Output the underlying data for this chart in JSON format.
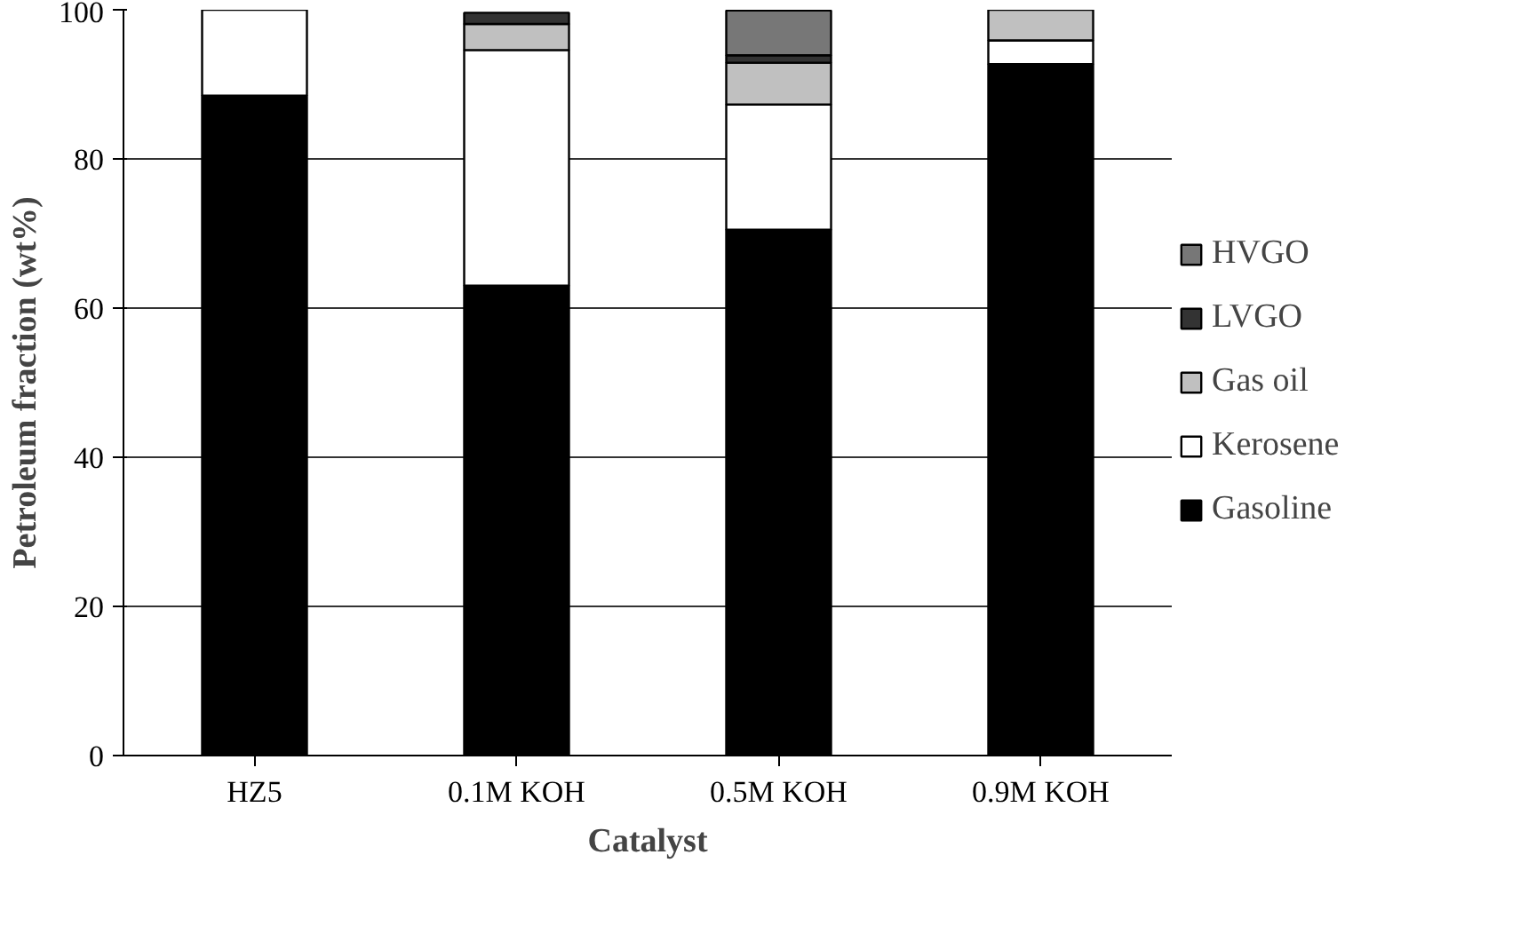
{
  "chart_data": {
    "type": "bar",
    "stacked": true,
    "xlabel": "Catalyst",
    "ylabel": "Petroleum fraction (wt%)",
    "categories": [
      "HZ5",
      "0.1M KOH",
      "0.5M KOH",
      "0.9M KOH"
    ],
    "series": [
      {
        "name": "Gasoline",
        "color": "#000000",
        "values": [
          88.5,
          63,
          70.5,
          92.7
        ]
      },
      {
        "name": "Kerosene",
        "color": "#ffffff",
        "values": [
          11.5,
          31.6,
          16.8,
          3.2
        ]
      },
      {
        "name": "Gas oil",
        "color": "#c0c0c0",
        "values": [
          null,
          3.5,
          5.6,
          4.1
        ]
      },
      {
        "name": "LVGO",
        "color": "#333333",
        "values": [
          null,
          1.5,
          1,
          null
        ]
      },
      {
        "name": "HVGO",
        "color": "#777777",
        "values": [
          null,
          null,
          6,
          null
        ]
      }
    ],
    "ylim": [
      0,
      100
    ],
    "yticks": [
      0,
      20,
      40,
      60,
      80,
      100
    ],
    "grid": "y",
    "legend": "right"
  }
}
